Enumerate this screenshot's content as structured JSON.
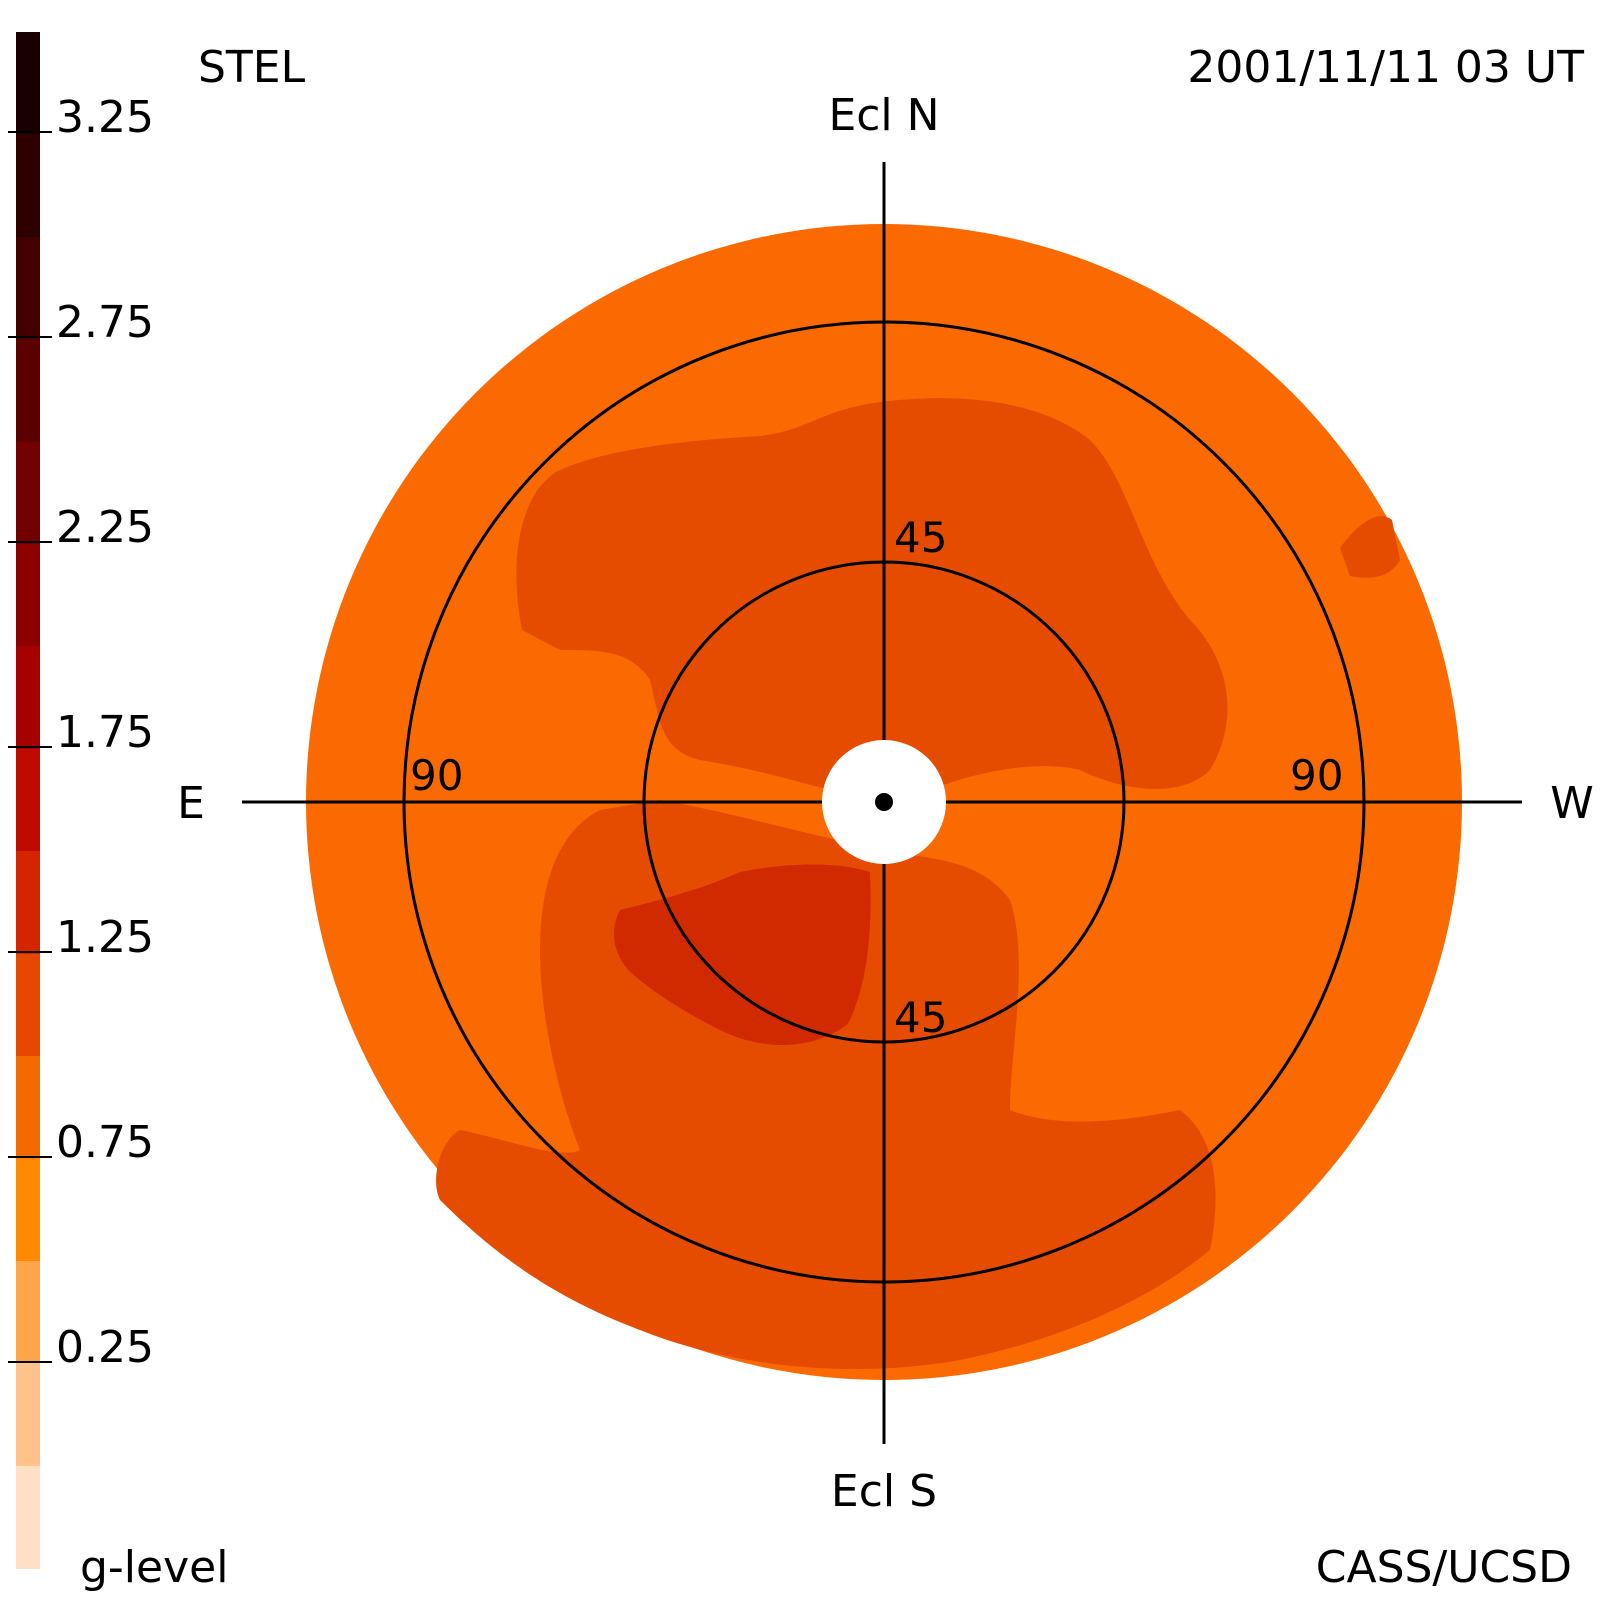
{
  "header": {
    "instrument": "STEL",
    "datetime": "2001/11/11 03 UT",
    "credit": "CASS/UCSD"
  },
  "colorbar": {
    "label": "g-level",
    "tick_labels": [
      "3.25",
      "2.75",
      "2.25",
      "1.75",
      "1.25",
      "0.75",
      "0.25"
    ],
    "level_colors": [
      "#1a0000",
      "#2e0000",
      "#420000",
      "#5a0000",
      "#720000",
      "#8c0000",
      "#a60000",
      "#bf0a00",
      "#d42400",
      "#e64800",
      "#f36a00",
      "#ff8a00",
      "#ffa64a",
      "#ffc28a",
      "#ffe0c4"
    ]
  },
  "map": {
    "directions": {
      "north": "Ecl N",
      "south": "Ecl S",
      "east": "E",
      "west": "W"
    },
    "ring_labels": {
      "inner_north": "45",
      "inner_south": "45",
      "outer_east": "90",
      "outer_west": "90"
    },
    "elongation_rings_deg": [
      45,
      90
    ],
    "colors": {
      "background_field": "#fb6a00",
      "mid_field": "#e64c00",
      "high_field": "#d22a00",
      "center_mask": "#ffffff",
      "lines": "#000000"
    }
  }
}
